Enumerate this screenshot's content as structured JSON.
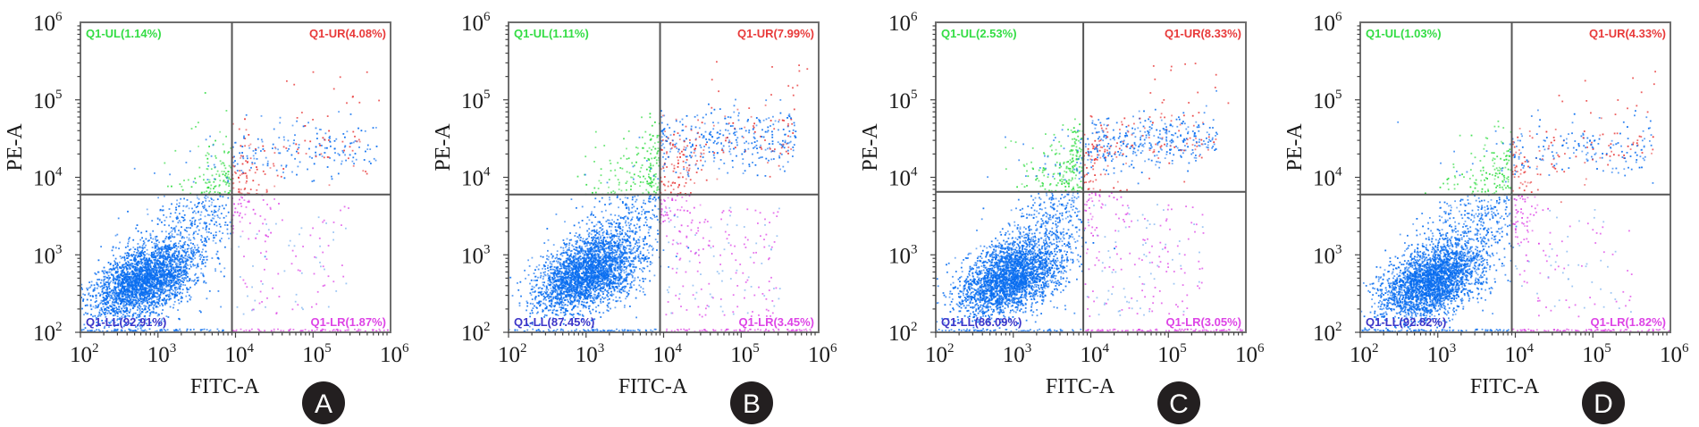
{
  "colors": {
    "frame": "#6e6e6e",
    "gate": "#555555",
    "LL": "#0a6ef0",
    "LL_text": "#3d35c8",
    "UL": "#33dd44",
    "UR": "#e83a3a",
    "LR": "#dd44e6",
    "badge": "#231f20"
  },
  "chart_data": [
    {
      "type": "scatter",
      "panel": "A",
      "title": "",
      "xlabel": "FITC-A",
      "ylabel": "PE-A",
      "xscale": "log",
      "yscale": "log",
      "xlim": [
        100,
        1000000
      ],
      "ylim": [
        100,
        1000000
      ],
      "xticks": [
        "10^2",
        "10^3",
        "10^4",
        "10^5",
        "10^6"
      ],
      "yticks": [
        "10^2",
        "10^3",
        "10^4",
        "10^5",
        "10^6"
      ],
      "gate": {
        "x": 9000,
        "y": 6000
      },
      "quadrants": [
        {
          "name": "Q1-UL",
          "label": "Q1-UL(1.14%)",
          "percent": 1.14,
          "position": "top-left"
        },
        {
          "name": "Q1-UR",
          "label": "Q1-UR(4.08%)",
          "percent": 4.08,
          "position": "top-right"
        },
        {
          "name": "Q1-LL",
          "label": "Q1-LL(92.91%)",
          "percent": 92.91,
          "position": "bottom-left"
        },
        {
          "name": "Q1-LR",
          "label": "Q1-LR(1.87%)",
          "percent": 1.87,
          "position": "bottom-right"
        }
      ],
      "populations": {
        "main_cluster_center": [
          650,
          450
        ],
        "upper_band_center": [
          40000,
          22000
        ]
      }
    },
    {
      "type": "scatter",
      "panel": "B",
      "title": "",
      "xlabel": "FITC-A",
      "ylabel": "PE-A",
      "xscale": "log",
      "yscale": "log",
      "xlim": [
        100,
        1000000
      ],
      "ylim": [
        100,
        1000000
      ],
      "xticks": [
        "10^2",
        "10^3",
        "10^4",
        "10^5",
        "10^6"
      ],
      "yticks": [
        "10^2",
        "10^3",
        "10^4",
        "10^5",
        "10^6"
      ],
      "gate": {
        "x": 9000,
        "y": 6000
      },
      "quadrants": [
        {
          "name": "Q1-UL",
          "label": "Q1-UL(1.11%)",
          "percent": 1.11,
          "position": "top-left"
        },
        {
          "name": "Q1-UR",
          "label": "Q1-UR(7.99%)",
          "percent": 7.99,
          "position": "top-right"
        },
        {
          "name": "Q1-LL",
          "label": "Q1-LL(87.45%)",
          "percent": 87.45,
          "position": "bottom-left"
        },
        {
          "name": "Q1-LR",
          "label": "Q1-LR(3.45%)",
          "percent": 3.45,
          "position": "bottom-right"
        }
      ],
      "populations": {
        "main_cluster_center": [
          1000,
          550
        ],
        "upper_band_center": [
          30000,
          30000
        ]
      }
    },
    {
      "type": "scatter",
      "panel": "C",
      "title": "",
      "xlabel": "FITC-A",
      "ylabel": "PE-A",
      "xscale": "log",
      "yscale": "log",
      "xlim": [
        100,
        1000000
      ],
      "ylim": [
        100,
        1000000
      ],
      "xticks": [
        "10^2",
        "10^3",
        "10^4",
        "10^5",
        "10^6"
      ],
      "yticks": [
        "10^2",
        "10^3",
        "10^4",
        "10^5",
        "10^6"
      ],
      "gate": {
        "x": 8000,
        "y": 6500
      },
      "quadrants": [
        {
          "name": "Q1-UL",
          "label": "Q1-UL(2.53%)",
          "percent": 2.53,
          "position": "top-left"
        },
        {
          "name": "Q1-UR",
          "label": "Q1-UR(8.33%)",
          "percent": 8.33,
          "position": "top-right"
        },
        {
          "name": "Q1-LL",
          "label": "Q1-LL(86.09%)",
          "percent": 86.09,
          "position": "bottom-left"
        },
        {
          "name": "Q1-LR",
          "label": "Q1-LR(3.05%)",
          "percent": 3.05,
          "position": "bottom-right"
        }
      ],
      "populations": {
        "main_cluster_center": [
          900,
          500
        ],
        "upper_band_center": [
          25000,
          28000
        ]
      }
    },
    {
      "type": "scatter",
      "panel": "D",
      "title": "",
      "xlabel": "FITC-A",
      "ylabel": "PE-A",
      "xscale": "log",
      "yscale": "log",
      "xlim": [
        100,
        1000000
      ],
      "ylim": [
        100,
        1000000
      ],
      "xticks": [
        "10^2",
        "10^3",
        "10^4",
        "10^5",
        "10^6"
      ],
      "yticks": [
        "10^2",
        "10^3",
        "10^4",
        "10^5",
        "10^6"
      ],
      "gate": {
        "x": 9000,
        "y": 6000
      },
      "quadrants": [
        {
          "name": "Q1-UL",
          "label": "Q1-UL(1.03%)",
          "percent": 1.03,
          "position": "top-left"
        },
        {
          "name": "Q1-UR",
          "label": "Q1-UR(4.33%)",
          "percent": 4.33,
          "position": "top-right"
        },
        {
          "name": "Q1-LL",
          "label": "Q1-LL(92.82%)",
          "percent": 92.82,
          "position": "bottom-left"
        },
        {
          "name": "Q1-LR",
          "label": "Q1-LR(1.82%)",
          "percent": 1.82,
          "position": "bottom-right"
        }
      ],
      "populations": {
        "main_cluster_center": [
          800,
          450
        ],
        "upper_band_center": [
          35000,
          22000
        ]
      }
    }
  ]
}
